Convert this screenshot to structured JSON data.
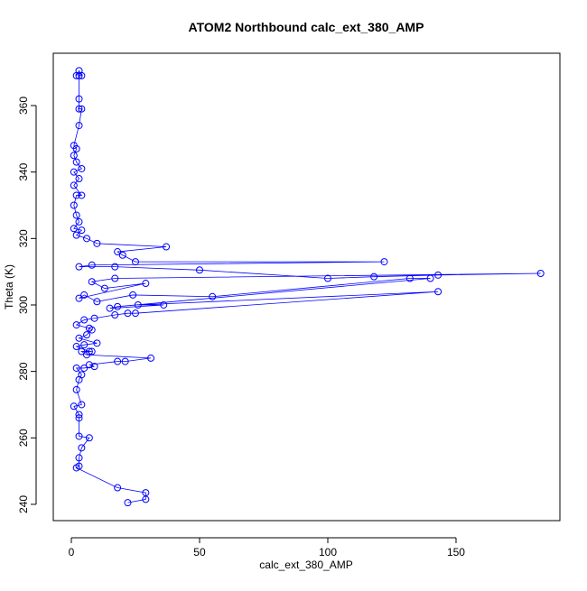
{
  "chart_data": {
    "type": "scatter",
    "title": "ATOM2 Northbound calc_ext_380_AMP",
    "xlabel": "calc_ext_380_AMP",
    "ylabel": "Theta (K)",
    "color": "#0000ff",
    "connect": true,
    "x": [
      22,
      29,
      29,
      18,
      2,
      3,
      3,
      4,
      7,
      3,
      3,
      3,
      1,
      4,
      2,
      3,
      4,
      2,
      5,
      9,
      7,
      18,
      21,
      31,
      6,
      4,
      8,
      7,
      2,
      5,
      10,
      3,
      6,
      8,
      7,
      2,
      5,
      9,
      17,
      22,
      25,
      143,
      26,
      36,
      15,
      18,
      140,
      132,
      55,
      24,
      10,
      5,
      3,
      29,
      13,
      8,
      17,
      183,
      143,
      118,
      100,
      50,
      17,
      3,
      8,
      122,
      25,
      20,
      18,
      37,
      10,
      6,
      2,
      4,
      1,
      3,
      2,
      1,
      2,
      4,
      1,
      3,
      1,
      4,
      2,
      1,
      2,
      1,
      3,
      4,
      3,
      3,
      3,
      4,
      3,
      2
    ],
    "values": [
      240.5,
      241.5,
      243.5,
      245,
      251,
      251.5,
      254,
      257,
      260,
      260.5,
      266,
      267,
      269.5,
      270,
      274.5,
      277.5,
      279,
      281,
      281,
      281.5,
      282,
      283,
      283,
      284,
      285,
      286,
      286,
      286,
      287.5,
      288,
      288.5,
      290,
      291,
      292.5,
      293,
      294,
      295.5,
      296,
      297,
      297.5,
      297.5,
      304,
      300,
      300,
      299,
      299.5,
      308,
      308,
      302.5,
      303,
      301,
      303,
      302,
      306.5,
      305,
      307,
      308,
      309.5,
      309,
      308.5,
      308,
      310.5,
      311.5,
      311.5,
      312,
      313,
      313,
      315,
      316,
      317.5,
      318.5,
      320,
      321,
      322.5,
      323,
      325,
      327,
      330,
      333,
      333,
      336,
      338,
      340,
      341,
      343,
      345,
      347,
      348,
      354,
      359,
      359,
      362,
      369,
      369,
      370.5,
      369
    ],
    "xlim": [
      -7.04,
      190.5
    ],
    "ylim": [
      235.1,
      375.75
    ],
    "xticks": [
      0,
      50,
      100,
      150
    ],
    "yticks": [
      240,
      260,
      280,
      300,
      320,
      340,
      360
    ]
  }
}
